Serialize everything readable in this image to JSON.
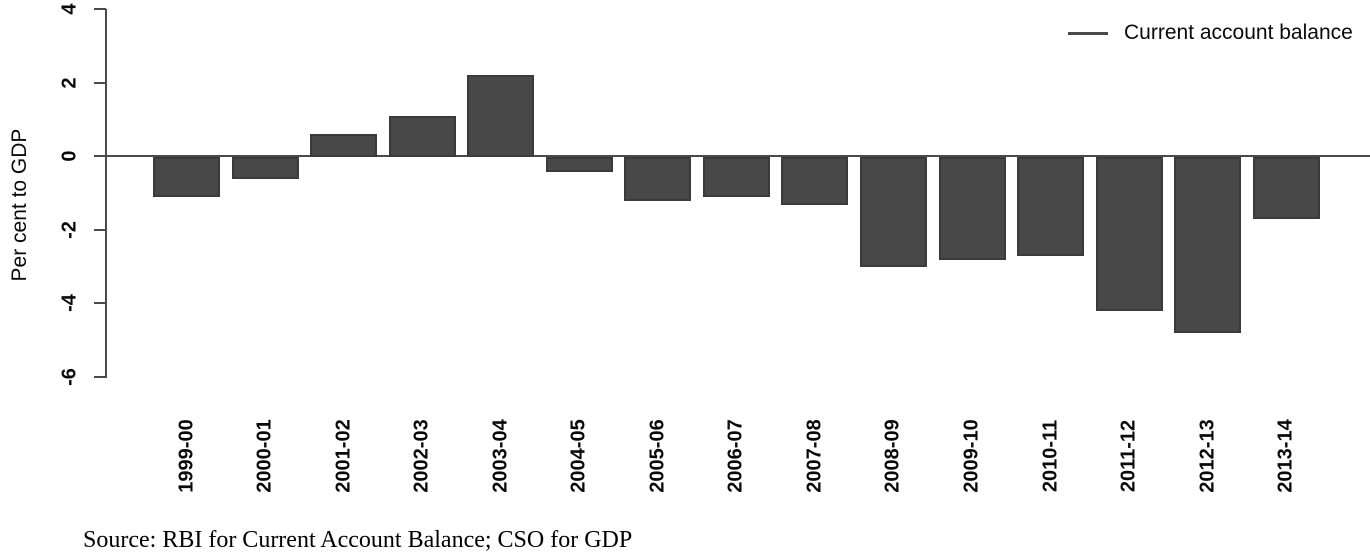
{
  "chart_data": {
    "type": "bar",
    "categories": [
      "1999-00",
      "2000-01",
      "2001-02",
      "2002-03",
      "2003-04",
      "2004-05",
      "2005-06",
      "2006-07",
      "2007-08",
      "2008-09",
      "2009-10",
      "2010-11",
      "2011-12",
      "2012-13",
      "2013-14"
    ],
    "values": [
      -1.1,
      -0.6,
      0.6,
      1.1,
      2.2,
      -0.4,
      -1.2,
      -1.1,
      -1.3,
      -3.0,
      -2.8,
      -2.7,
      -4.2,
      -4.8,
      -1.7
    ],
    "series_name": "Current account balance",
    "title": "",
    "xlabel": "",
    "ylabel": "Per cent to GDP",
    "ylim": [
      -6,
      4
    ],
    "yticks": [
      4,
      2,
      0,
      -2,
      -4,
      -6
    ],
    "grid": false,
    "legend": {
      "label": "Current account balance",
      "position": "top-right"
    },
    "source_note": "Source: RBI for Current Account Balance; CSO for GDP",
    "colors": {
      "bar_fill": "#484848",
      "bar_border": "#3a3a3a",
      "axis_line": "#4a4a4a",
      "text": "#000000"
    }
  }
}
